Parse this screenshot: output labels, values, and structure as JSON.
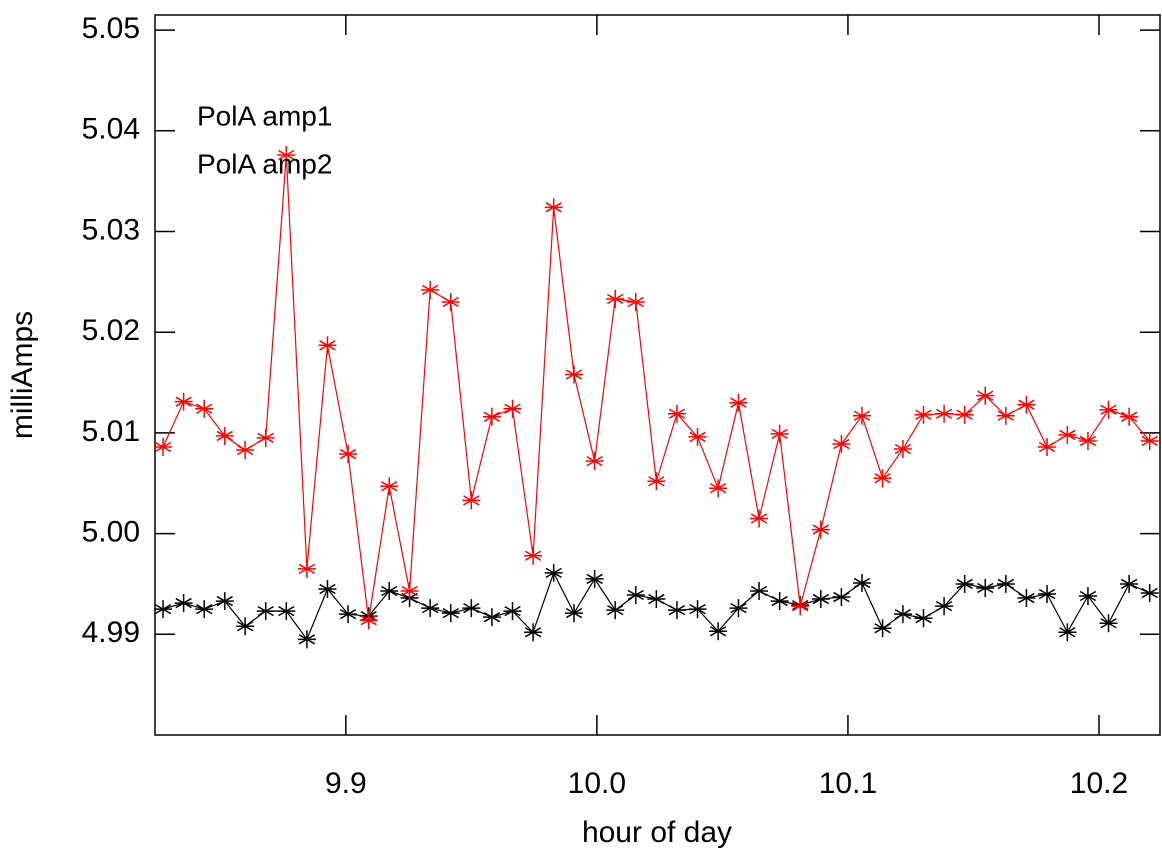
{
  "chart_data": {
    "type": "line",
    "xlabel": "hour of day",
    "ylabel": "milliAmps",
    "xlim": [
      9.824,
      10.2243
    ],
    "ylim": [
      4.98,
      5.0515
    ],
    "xticks": [
      9.9,
      {
        "value": 10,
        "label": "10.0"
      },
      10.1,
      10.2
    ],
    "yticks": [
      5.05,
      5.04,
      5.03,
      5.02,
      5.01,
      {
        "value": 5,
        "label": "5.00"
      },
      4.99
    ],
    "marker": "asterisk",
    "x": [
      9.8272,
      9.8354,
      9.8436,
      9.8518,
      9.8599,
      9.8681,
      9.8763,
      9.8845,
      9.8927,
      9.9009,
      9.9091,
      9.9173,
      9.9254,
      9.9336,
      9.9418,
      9.95,
      9.9582,
      9.9664,
      9.9746,
      9.9828,
      9.9909,
      9.9991,
      10.0073,
      10.0155,
      10.0237,
      10.0319,
      10.0401,
      10.0483,
      10.0564,
      10.0646,
      10.0728,
      10.081,
      10.0892,
      10.0974,
      10.1056,
      10.1138,
      10.1219,
      10.1301,
      10.1383,
      10.1465,
      10.1547,
      10.1629,
      10.1711,
      10.1793,
      10.1874,
      10.1956,
      10.2038,
      10.212,
      10.2202
    ],
    "series": [
      {
        "name": "PolA amp1",
        "color": "#000000",
        "values": [
          4.9925,
          4.9931,
          4.9925,
          4.9933,
          4.9908,
          4.9923,
          4.9923,
          4.9895,
          4.9945,
          4.992,
          4.9918,
          4.9943,
          4.9936,
          4.9926,
          4.9921,
          4.9926,
          4.9917,
          4.9923,
          4.9902,
          4.9961,
          4.9921,
          4.9955,
          4.9924,
          4.9939,
          4.9935,
          4.9924,
          4.9925,
          4.9903,
          4.9926,
          4.9943,
          4.9933,
          4.9929,
          4.9935,
          4.9937,
          4.9951,
          4.9906,
          4.992,
          4.9916,
          4.9928,
          4.995,
          4.9946,
          4.995,
          4.9936,
          4.994,
          4.9902,
          4.9938,
          4.9911,
          4.995,
          4.9941
        ]
      },
      {
        "name": "PolA amp2",
        "color": "#ff0000",
        "values": [
          5.0086,
          5.0131,
          5.0124,
          5.0097,
          5.0083,
          5.0095,
          5.0376,
          4.9965,
          5.0187,
          5.0079,
          4.9914,
          5.0047,
          4.9943,
          5.0242,
          5.023,
          5.0033,
          5.0116,
          5.0124,
          4.9978,
          5.0324,
          5.0158,
          5.0072,
          5.0233,
          5.023,
          5.0052,
          5.0119,
          5.0096,
          5.0045,
          5.013,
          5.0015,
          5.0099,
          4.9928,
          5.0004,
          5.0089,
          5.0117,
          5.0055,
          5.0084,
          5.0118,
          5.0119,
          5.0118,
          5.0137,
          5.0117,
          5.0128,
          5.0086,
          5.0098,
          5.0092,
          5.0123,
          5.0116,
          5.0092
        ]
      }
    ]
  }
}
